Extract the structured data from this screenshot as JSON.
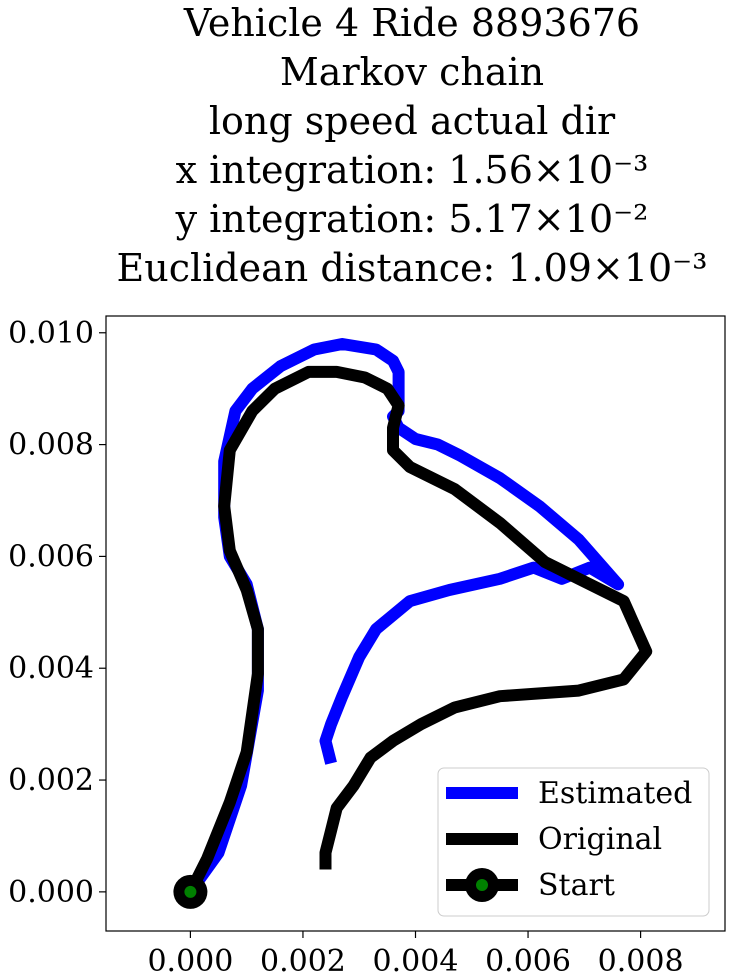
{
  "chart_data": {
    "type": "line",
    "title_lines": [
      "Vehicle 4 Ride 8893676",
      "Markov chain",
      "long speed actual dir",
      "x integration: 1.56×10⁻³",
      "y integration: 5.17×10⁻²",
      "Euclidean distance: 1.09×10⁻³"
    ],
    "xlim": [
      -0.0015,
      0.0095
    ],
    "ylim": [
      -0.0007,
      0.0103
    ],
    "xticks": [
      {
        "value": 0.0,
        "label": "0.000"
      },
      {
        "value": 0.002,
        "label": "0.002"
      },
      {
        "value": 0.004,
        "label": "0.004"
      },
      {
        "value": 0.006,
        "label": "0.006"
      },
      {
        "value": 0.008,
        "label": "0.008"
      }
    ],
    "yticks": [
      {
        "value": 0.0,
        "label": "0.000"
      },
      {
        "value": 0.002,
        "label": "0.002"
      },
      {
        "value": 0.004,
        "label": "0.004"
      },
      {
        "value": 0.006,
        "label": "0.006"
      },
      {
        "value": 0.008,
        "label": "0.008"
      },
      {
        "value": 0.01,
        "label": "0.010"
      }
    ],
    "grid": false,
    "legend_position": "lower-right",
    "series": [
      {
        "name": "Estimated",
        "color": "#0000ff",
        "points": [
          [
            0.0,
            0.0
          ],
          [
            0.0005,
            0.0007
          ],
          [
            0.0009,
            0.0019
          ],
          [
            0.0012,
            0.0036
          ],
          [
            0.0012,
            0.0047
          ],
          [
            0.001,
            0.0055
          ],
          [
            0.0007,
            0.006
          ],
          [
            0.0006,
            0.0067
          ],
          [
            0.0006,
            0.0077
          ],
          [
            0.0008,
            0.0086
          ],
          [
            0.0011,
            0.009
          ],
          [
            0.0016,
            0.0094
          ],
          [
            0.0022,
            0.0097
          ],
          [
            0.0027,
            0.0098
          ],
          [
            0.0033,
            0.0097
          ],
          [
            0.0036,
            0.0095
          ],
          [
            0.0037,
            0.0093
          ],
          [
            0.0037,
            0.0086
          ],
          [
            0.0036,
            0.0085
          ],
          [
            0.0037,
            0.0083
          ],
          [
            0.004,
            0.0081
          ],
          [
            0.0044,
            0.008
          ],
          [
            0.0048,
            0.0078
          ],
          [
            0.0055,
            0.0074
          ],
          [
            0.0062,
            0.0069
          ],
          [
            0.0069,
            0.0063
          ],
          [
            0.0076,
            0.0055
          ],
          [
            0.0071,
            0.0058
          ],
          [
            0.0066,
            0.0056
          ],
          [
            0.0061,
            0.0058
          ],
          [
            0.0055,
            0.0056
          ],
          [
            0.0046,
            0.0054
          ],
          [
            0.0039,
            0.0052
          ],
          [
            0.0033,
            0.0047
          ],
          [
            0.003,
            0.0042
          ],
          [
            0.0027,
            0.0035
          ],
          [
            0.0025,
            0.003
          ],
          [
            0.0024,
            0.0027
          ],
          [
            0.0025,
            0.0023
          ]
        ]
      },
      {
        "name": "Original",
        "color": "#000000",
        "points": [
          [
            0.0,
            0.0
          ],
          [
            0.0003,
            0.0006
          ],
          [
            0.0007,
            0.0016
          ],
          [
            0.001,
            0.0025
          ],
          [
            0.0011,
            0.0032
          ],
          [
            0.0012,
            0.0039
          ],
          [
            0.0012,
            0.0047
          ],
          [
            0.001,
            0.0054
          ],
          [
            0.0007,
            0.0061
          ],
          [
            0.0006,
            0.0069
          ],
          [
            0.0007,
            0.0079
          ],
          [
            0.0011,
            0.0086
          ],
          [
            0.0015,
            0.009
          ],
          [
            0.0021,
            0.0093
          ],
          [
            0.0026,
            0.0093
          ],
          [
            0.0031,
            0.0092
          ],
          [
            0.0035,
            0.009
          ],
          [
            0.0037,
            0.0087
          ],
          [
            0.0036,
            0.0083
          ],
          [
            0.0036,
            0.0079
          ],
          [
            0.0039,
            0.0076
          ],
          [
            0.0047,
            0.0072
          ],
          [
            0.0055,
            0.0066
          ],
          [
            0.0063,
            0.0059
          ],
          [
            0.0077,
            0.0052
          ],
          [
            0.0081,
            0.0043
          ],
          [
            0.0077,
            0.0038
          ],
          [
            0.0069,
            0.0036
          ],
          [
            0.0055,
            0.0035
          ],
          [
            0.0047,
            0.0033
          ],
          [
            0.0041,
            0.003
          ],
          [
            0.0036,
            0.0027
          ],
          [
            0.0032,
            0.0024
          ],
          [
            0.0029,
            0.0019
          ],
          [
            0.0026,
            0.0015
          ],
          [
            0.0025,
            0.0011
          ],
          [
            0.0024,
            0.0007
          ],
          [
            0.0024,
            0.0004
          ]
        ]
      }
    ],
    "start_marker": {
      "name": "Start",
      "point": [
        0.0,
        0.0
      ],
      "edge_color": "#000000",
      "face_color": "#008000"
    }
  }
}
